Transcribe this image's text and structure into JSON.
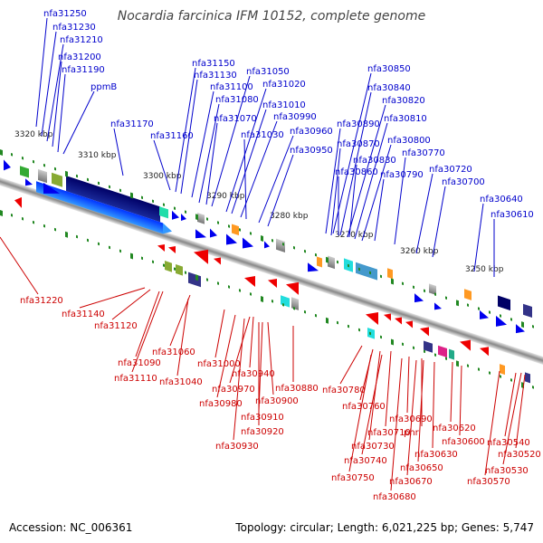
{
  "title": "Nocardia farcinica IFM 10152, complete genome",
  "footer": {
    "accession": "Accession: NC_006361",
    "summary": "Topology: circular; Length: 6,021,225 bp; Genes: 5,747"
  },
  "colors": {
    "forward": "#0000cc",
    "reverse": "#cc0000",
    "backbone": "#999999",
    "ticks": "#228822"
  },
  "kbp_labels": [
    "3320 kbp",
    "3310 kbp",
    "3300 kbp",
    "3290 kbp",
    "3280 kbp",
    "3270 kbp",
    "3260 kbp",
    "3250 kbp"
  ],
  "top_labels": [
    "nfa31250",
    "nfa31230",
    "nfa31210",
    "nfa31200",
    "nfa31190",
    "ppmB",
    "nfa31170",
    "nfa31160",
    "nfa31150",
    "nfa31130",
    "nfa31100",
    "nfa31080",
    "nfa31070",
    "nfa31050",
    "nfa31020",
    "nfa31010",
    "nfa30990",
    "nfa31030",
    "nfa30960",
    "nfa30950",
    "nfa30850",
    "nfa30840",
    "nfa30820",
    "nfa30810",
    "nfa30890",
    "nfa30800",
    "nfa30870",
    "nfa30770",
    "nfa30830",
    "nfa30860",
    "nfa30790",
    "nfa30720",
    "nfa30700",
    "nfa30640",
    "nfa30610"
  ],
  "bottom_labels": [
    "nfa31220",
    "nfa31140",
    "nfa31120",
    "nfa31060",
    "nfa31090",
    "nfa31110",
    "nfa31040",
    "nfa31000",
    "nfa30940",
    "nfa30970",
    "nfa30880",
    "nfa30980",
    "nfa30900",
    "nfa30910",
    "nfa30920",
    "nfa30930",
    "nfa30780",
    "nfa30760",
    "nfa30690",
    "nfa30710",
    "phr",
    "nfa30620",
    "nfa30600",
    "nfa30730",
    "nfa30630",
    "nfa30740",
    "nfa30650",
    "nfa30750",
    "nfa30670",
    "nfa30680",
    "nfa30540",
    "nfa30520",
    "nfa30530",
    "nfa30570"
  ]
}
